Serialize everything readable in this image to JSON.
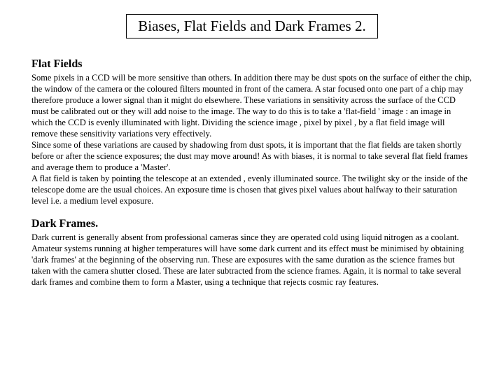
{
  "title": "Biases, Flat Fields and Dark Frames 2.",
  "section1": {
    "heading": "Flat Fields",
    "body": "Some pixels in a CCD will be more sensitive than others. In addition there may be dust spots on the surface of either the chip, the window of the camera or the coloured filters mounted in front of the camera. A star focused onto one part of a chip may therefore produce a lower signal than it might do elsewhere. These variations in sensitivity across the surface of the CCD must be calibrated out or they will add noise to the image.  The way to do this is to take a 'flat-field ' image : an image in which the CCD is evenly illuminated with light. Dividing the science image , pixel by pixel , by a flat field image will remove these sensitivity variations very effectively.\n Since some of these variations are caused by shadowing from dust spots, it is important that the flat fields are taken shortly before or after the science exposures; the dust may move around! As with biases, it is normal to take several flat field frames and average them to produce a 'Master'.\nA flat field is taken by pointing the telescope at an extended , evenly illuminated source. The twilight sky or the inside of the telescope dome are the usual choices. An exposure time is chosen that gives pixel values about halfway to their saturation  level  i.e. a medium level exposure."
  },
  "section2": {
    "heading": "Dark Frames.",
    "body": "Dark current is generally absent from professional cameras since they are operated cold using liquid nitrogen as a coolant. Amateur systems  running at higher temperatures will have some dark current and its effect must be minimised by obtaining 'dark frames' at the beginning of the observing run. These are exposures with the same duration as the science frames but taken with the camera shutter closed.  These are later subtracted from the science frames.  Again, it is normal to take several dark frames and combine them to form a Master, using a technique that rejects cosmic ray features."
  },
  "colors": {
    "background": "#ffffff",
    "text": "#000000",
    "border": "#000000"
  },
  "typography": {
    "title_fontsize": 21,
    "heading_fontsize": 16,
    "body_fontsize": 12.5,
    "font_family": "Times New Roman"
  }
}
